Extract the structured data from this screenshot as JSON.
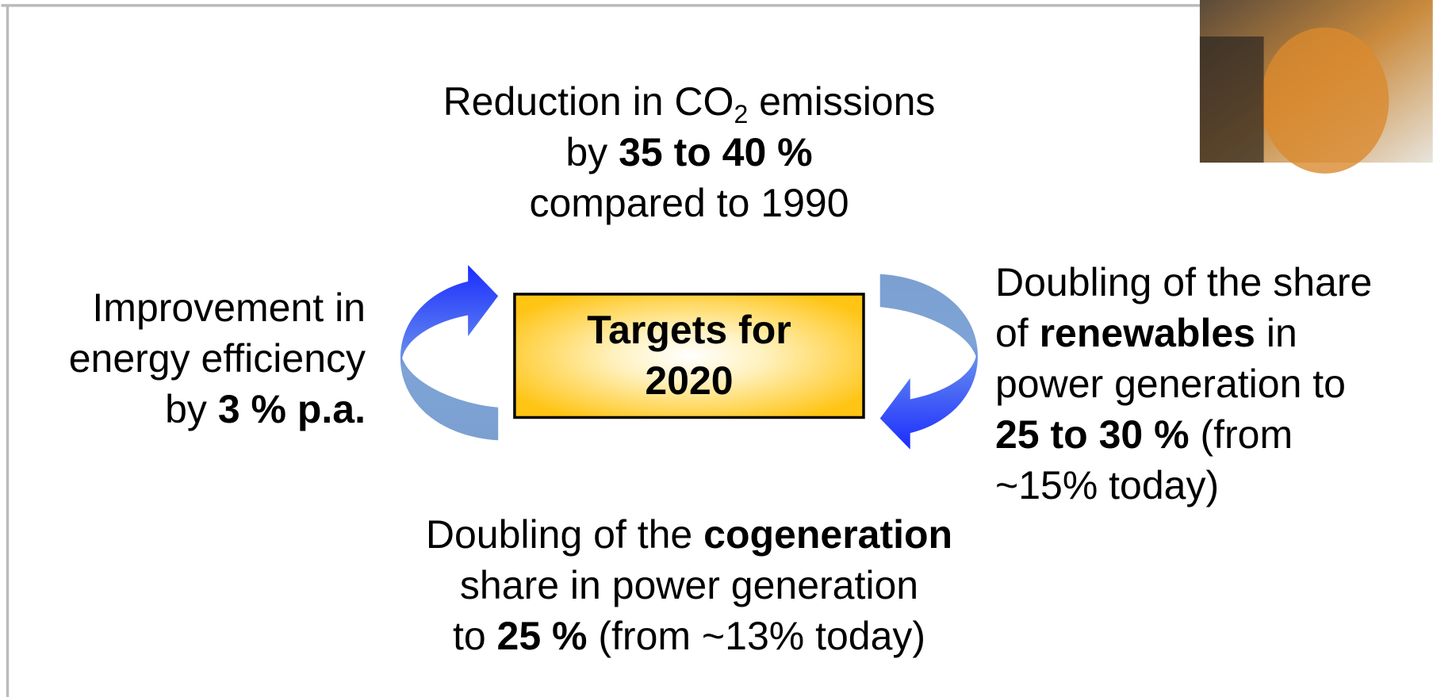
{
  "center": {
    "lines": [
      [
        {
          "text": "Targets for",
          "bold": true
        }
      ],
      [
        {
          "text": "2020",
          "bold": true
        }
      ]
    ]
  },
  "top": {
    "lines": [
      [
        {
          "text": "Reduction in CO"
        },
        {
          "text": "2",
          "sub": true
        },
        {
          "text": " emissions"
        }
      ],
      [
        {
          "text": "by "
        },
        {
          "text": "35 to 40 %",
          "bold": true
        }
      ],
      [
        {
          "text": "compared to 1990"
        }
      ]
    ]
  },
  "left": {
    "lines": [
      [
        {
          "text": "Improvement in"
        }
      ],
      [
        {
          "text": "energy efficiency"
        }
      ],
      [
        {
          "text": "by "
        },
        {
          "text": "3 % p.a.",
          "bold": true
        }
      ]
    ]
  },
  "right": {
    "lines": [
      [
        {
          "text": "Doubling of the share"
        }
      ],
      [
        {
          "text": "of "
        },
        {
          "text": "renewables",
          "bold": true
        },
        {
          "text": " in"
        }
      ],
      [
        {
          "text": "power generation to"
        }
      ],
      [
        {
          "text": "25 to 30 %",
          "bold": true
        },
        {
          "text": " (from"
        }
      ],
      [
        {
          "text": "~15% today)"
        }
      ]
    ]
  },
  "bottom": {
    "lines": [
      [
        {
          "text": "Doubling of the "
        },
        {
          "text": "cogeneration",
          "bold": true
        }
      ],
      [
        {
          "text": "share in power generation"
        }
      ],
      [
        {
          "text": "to "
        },
        {
          "text": "25 %",
          "bold": true
        },
        {
          "text": " (from ~13% today)"
        }
      ]
    ]
  }
}
